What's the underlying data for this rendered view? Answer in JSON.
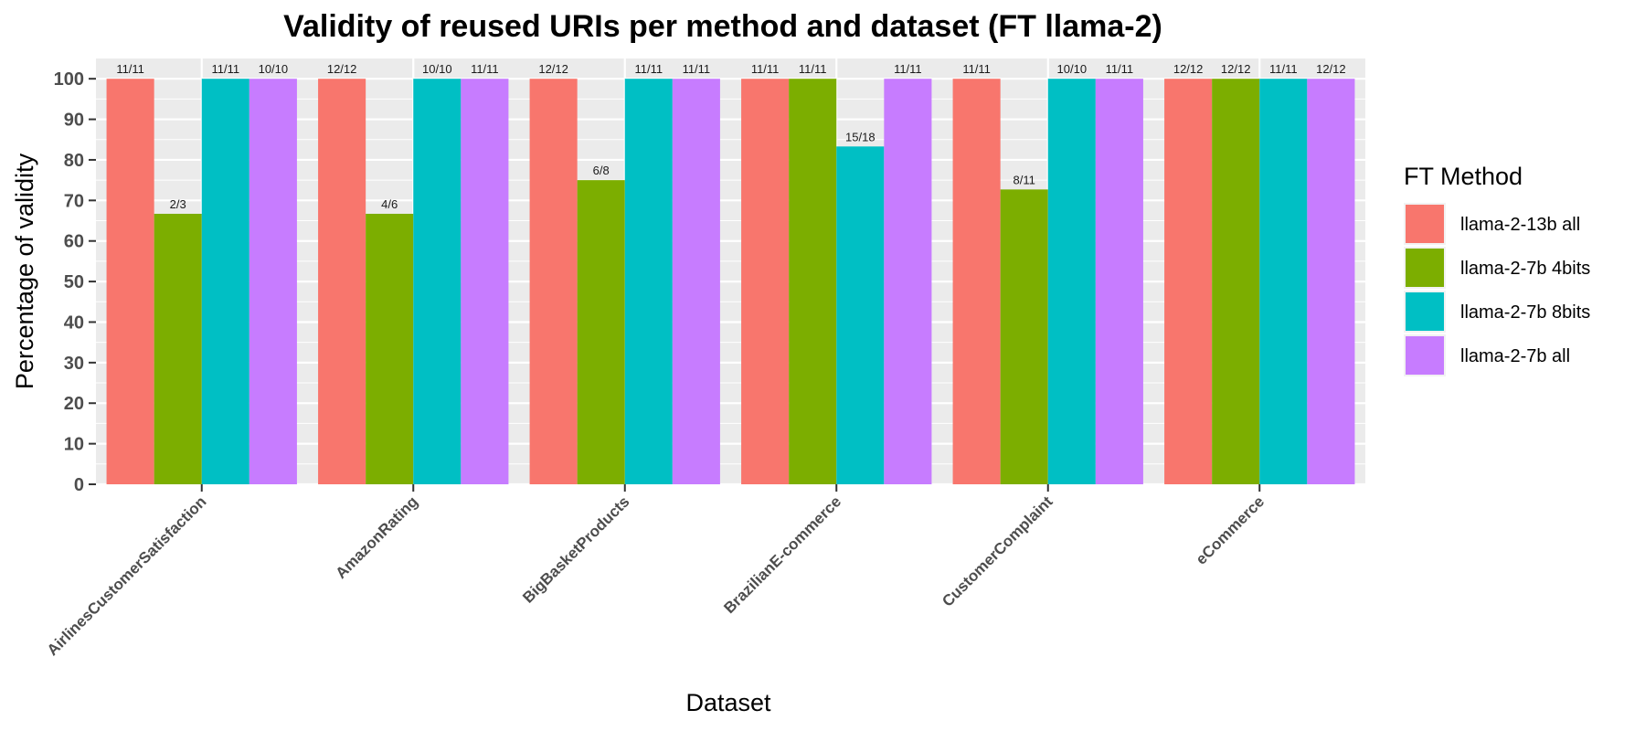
{
  "chart_data": {
    "type": "bar",
    "title": "Validity of reused URIs per method and dataset (FT llama-2)",
    "xlabel": "Dataset",
    "ylabel": "Percentage of validity",
    "ylim": [
      0,
      105
    ],
    "yticks": [
      0,
      10,
      20,
      30,
      40,
      50,
      60,
      70,
      80,
      90,
      100
    ],
    "grid": true,
    "legend_title": "FT Method",
    "legend_position": "right",
    "categories": [
      "AirlinesCustomerSatisfaction",
      "AmazonRating",
      "BigBasketProducts",
      "BrazilianE-commerce",
      "CustomerComplaint",
      "eCommerce"
    ],
    "series": [
      {
        "name": "llama-2-13b all",
        "color": "#F8766D",
        "values": [
          100,
          100,
          100,
          100,
          100,
          100
        ],
        "labels": [
          "11/11",
          "12/12",
          "12/12",
          "11/11",
          "11/11",
          "12/12"
        ]
      },
      {
        "name": "llama-2-7b 4bits",
        "color": "#7CAE00",
        "values": [
          66.7,
          66.7,
          75,
          100,
          72.7,
          100
        ],
        "labels": [
          "2/3",
          "4/6",
          "6/8",
          "11/11",
          "8/11",
          "12/12"
        ]
      },
      {
        "name": "llama-2-7b 8bits",
        "color": "#00BFC4",
        "values": [
          100,
          100,
          100,
          83.3,
          100,
          100
        ],
        "labels": [
          "11/11",
          "10/10",
          "11/11",
          "15/18",
          "10/10",
          "11/11"
        ]
      },
      {
        "name": "llama-2-7b all",
        "color": "#C77CFF",
        "values": [
          100,
          100,
          100,
          100,
          100,
          100
        ],
        "labels": [
          "10/10",
          "11/11",
          "11/11",
          "11/11",
          "11/11",
          "12/12"
        ]
      }
    ]
  }
}
